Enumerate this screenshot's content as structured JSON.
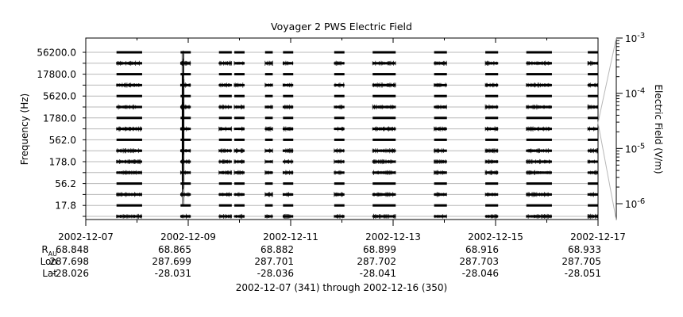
{
  "chart_data": {
    "type": "heatmap",
    "title": "Voyager 2 PWS Electric Field",
    "ylabel": "Frequency (Hz)",
    "colorbar_label": "Electric Field (V/m)",
    "colorbar_ticks": [
      {
        "base": "10",
        "exp": "-3",
        "value": 0.001
      },
      {
        "base": "10",
        "exp": "-4",
        "value": 0.0001
      },
      {
        "base": "10",
        "exp": "-5",
        "value": 1e-05
      },
      {
        "base": "10",
        "exp": "-6",
        "value": 1e-06
      }
    ],
    "colorbar_range": [
      5e-07,
      0.001
    ],
    "channels": [
      "10.0",
      "17.8",
      "31.1",
      "56.2",
      "100.0",
      "178.0",
      "311.0",
      "562.0",
      "1000.0",
      "1780.0",
      "3110.0",
      "5620.0",
      "10000.0",
      "17800.0",
      "31100.0",
      "56200.0"
    ],
    "x_start_day": 341,
    "x_end_day": 351,
    "x_ticks": [
      {
        "day": 341,
        "label": "2002-12-07",
        "rau": "68.848",
        "lon": "287.698",
        "lat": "-28.026"
      },
      {
        "day": 343,
        "label": "2002-12-09",
        "rau": "68.865",
        "lon": "287.699",
        "lat": "-28.031"
      },
      {
        "day": 345,
        "label": "2002-12-11",
        "rau": "68.882",
        "lon": "287.701",
        "lat": "-28.036"
      },
      {
        "day": 347,
        "label": "2002-12-13",
        "rau": "68.899",
        "lon": "287.702",
        "lat": "-28.041"
      },
      {
        "day": 349,
        "label": "2002-12-15",
        "rau": "68.916",
        "lon": "287.703",
        "lat": "-28.046"
      },
      {
        "day": 351,
        "label": "2002-12-17",
        "rau": "68.933",
        "lon": "287.705",
        "lat": "-28.051"
      }
    ],
    "x_minor_ticks": [
      342,
      344,
      346,
      348,
      350
    ],
    "row_labels": {
      "rau": "R",
      "rau_sub": "AU",
      "lon": "Lon",
      "lat": "Lat"
    },
    "data_segments": [
      {
        "start": 341.6,
        "end": 342.1
      },
      {
        "start": 342.85,
        "end": 343.05
      },
      {
        "start": 343.6,
        "end": 343.85
      },
      {
        "start": 343.9,
        "end": 344.1
      },
      {
        "start": 344.5,
        "end": 344.65
      },
      {
        "start": 344.85,
        "end": 345.05
      },
      {
        "start": 345.85,
        "end": 346.05
      },
      {
        "start": 346.6,
        "end": 347.05
      },
      {
        "start": 347.8,
        "end": 348.05
      },
      {
        "start": 348.8,
        "end": 349.05
      },
      {
        "start": 349.6,
        "end": 350.1
      },
      {
        "start": 350.8,
        "end": 351.0
      }
    ],
    "spike_day": 342.9,
    "subtitle": "2002-12-07 (341) through 2002-12-16 (350)"
  }
}
